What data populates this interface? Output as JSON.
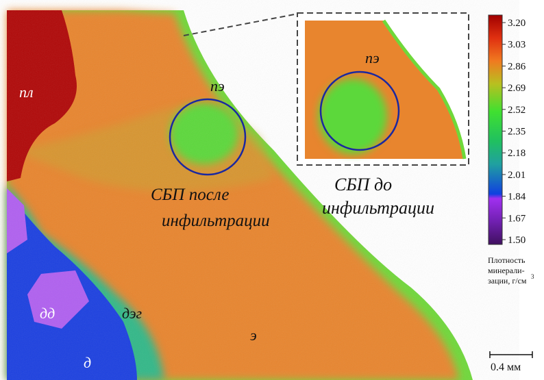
{
  "figure": {
    "labels": {
      "pl": "пл",
      "pe_main": "пэ",
      "pe_inset": "пэ",
      "dd": "дд",
      "deg": "дэг",
      "e": "э",
      "d": "д"
    },
    "captions": {
      "after": [
        "СБП после",
        "инфильтрации"
      ],
      "before": [
        "СБП до",
        "инфильтрации"
      ]
    },
    "colorbar": {
      "ticks": [
        "3.20",
        "3.03",
        "2.86",
        "2.69",
        "2.52",
        "2.35",
        "2.18",
        "2.01",
        "1.84",
        "1.67",
        "1.50"
      ],
      "title": [
        "Плотность",
        "минерали-",
        "зации, г/см"
      ],
      "title_sup": "3"
    },
    "scale_bar": "0.4 мм"
  }
}
